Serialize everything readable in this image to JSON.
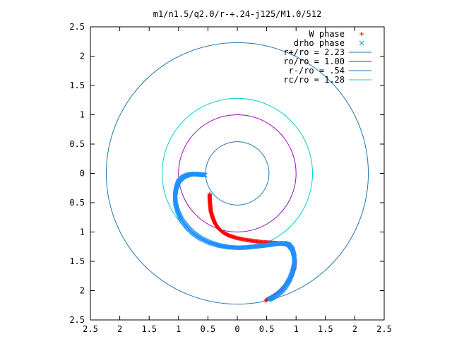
{
  "chart_data": {
    "type": "scatter",
    "title": "m1/n1.5/q2.0/r-+.24-j125/M1.0/512",
    "xlim": [
      -2.5,
      2.5
    ],
    "ylim": [
      -2.5,
      2.5
    ],
    "x_ticks": [
      -2.5,
      -2,
      -1.5,
      -1,
      -0.5,
      0,
      0.5,
      1,
      1.5,
      2,
      2.5
    ],
    "y_ticks": [
      -2.5,
      -2,
      -1.5,
      -1,
      -0.5,
      0,
      0.5,
      1,
      1.5,
      2,
      2.5
    ],
    "x_tick_labels": [
      "2.5",
      "2",
      "1.5",
      "1",
      "0.5",
      "0",
      "0.5",
      "1",
      "1.5",
      "2",
      "2.5"
    ],
    "y_tick_labels": [
      "2.5",
      "2",
      "1.5",
      "1",
      "0.5",
      "0",
      "0.5",
      "1",
      "1.5",
      "2",
      "2.5"
    ],
    "grid": false,
    "legend_position": "top-right",
    "circles": [
      {
        "name": "r+/ro = 2.23",
        "radius": 2.23,
        "color": "#1f77b4"
      },
      {
        "name": "ro/ro = 1.00",
        "radius": 1.0,
        "color": "#a000c0"
      },
      {
        "name": "r-/ro = .54",
        "radius": 0.54,
        "color": "#1f77b4"
      },
      {
        "name": "rc/ro = 1.28",
        "radius": 1.28,
        "color": "#00d0d0"
      }
    ],
    "series": [
      {
        "name": "W phase",
        "marker": "+",
        "color": "#ff0000",
        "points": [
          [
            -0.47,
            -0.35
          ],
          [
            -0.47,
            -0.45
          ],
          [
            -0.46,
            -0.55
          ],
          [
            -0.45,
            -0.65
          ],
          [
            -0.42,
            -0.75
          ],
          [
            -0.38,
            -0.85
          ],
          [
            -0.32,
            -0.94
          ],
          [
            -0.24,
            -1.01
          ],
          [
            -0.14,
            -1.06
          ],
          [
            -0.02,
            -1.1
          ],
          [
            0.12,
            -1.13
          ],
          [
            0.26,
            -1.15
          ],
          [
            0.4,
            -1.17
          ],
          [
            0.55,
            -1.18
          ],
          [
            0.68,
            -1.19
          ],
          [
            0.78,
            -1.2
          ],
          [
            0.86,
            -1.22
          ],
          [
            0.92,
            -1.28
          ],
          [
            0.96,
            -1.38
          ],
          [
            0.98,
            -1.5
          ],
          [
            0.97,
            -1.62
          ],
          [
            0.93,
            -1.74
          ],
          [
            0.86,
            -1.86
          ],
          [
            0.77,
            -1.97
          ],
          [
            0.66,
            -2.06
          ],
          [
            0.55,
            -2.13
          ],
          [
            0.48,
            -2.17
          ]
        ]
      },
      {
        "name": "drho phase",
        "marker": "x",
        "color": "#1e90ff",
        "points": [
          [
            -0.55,
            -0.03
          ],
          [
            -0.63,
            -0.02
          ],
          [
            -0.72,
            -0.01
          ],
          [
            -0.82,
            -0.02
          ],
          [
            -0.92,
            -0.06
          ],
          [
            -1.0,
            -0.14
          ],
          [
            -1.04,
            -0.25
          ],
          [
            -1.06,
            -0.38
          ],
          [
            -1.05,
            -0.52
          ],
          [
            -1.01,
            -0.66
          ],
          [
            -0.95,
            -0.79
          ],
          [
            -0.86,
            -0.91
          ],
          [
            -0.75,
            -1.02
          ],
          [
            -0.62,
            -1.11
          ],
          [
            -0.47,
            -1.18
          ],
          [
            -0.31,
            -1.23
          ],
          [
            -0.14,
            -1.26
          ],
          [
            0.03,
            -1.27
          ],
          [
            0.2,
            -1.26
          ],
          [
            0.37,
            -1.24
          ],
          [
            0.53,
            -1.22
          ],
          [
            0.68,
            -1.2
          ],
          [
            0.8,
            -1.19
          ],
          [
            0.88,
            -1.22
          ],
          [
            0.94,
            -1.3
          ],
          [
            0.97,
            -1.42
          ],
          [
            0.97,
            -1.55
          ],
          [
            0.94,
            -1.68
          ],
          [
            0.89,
            -1.81
          ],
          [
            0.82,
            -1.93
          ],
          [
            0.73,
            -2.03
          ],
          [
            0.62,
            -2.11
          ],
          [
            0.52,
            -2.16
          ]
        ]
      }
    ]
  },
  "colors": {
    "axes": "#000000",
    "background": "#ffffff"
  }
}
